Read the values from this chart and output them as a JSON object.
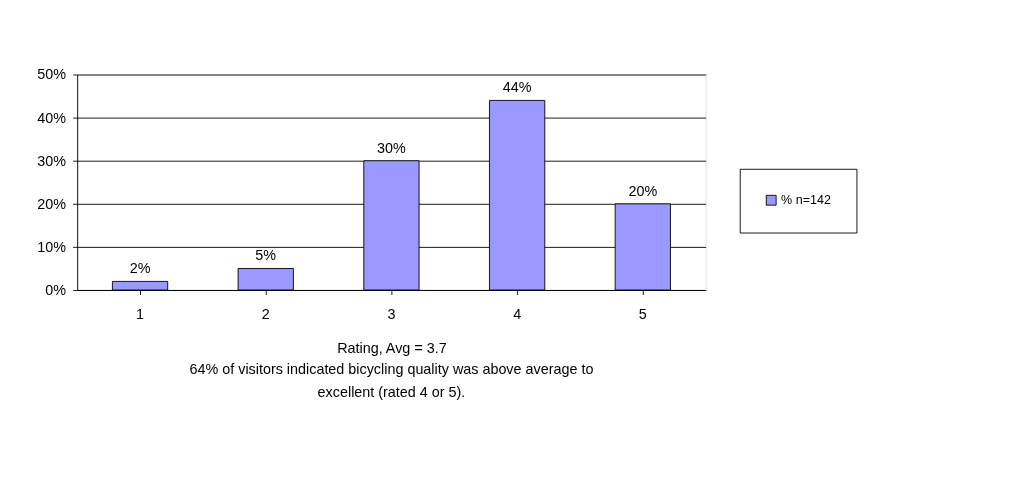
{
  "chart_data": {
    "type": "bar",
    "categories": [
      "1",
      "2",
      "3",
      "4",
      "5"
    ],
    "series": [
      {
        "name": "% n=142",
        "color": "#9999ff",
        "values": [
          2,
          5,
          30,
          44,
          20
        ],
        "value_labels": [
          "2%",
          "5%",
          "30%",
          "44%",
          "20%"
        ]
      }
    ],
    "ylim": [
      0,
      50
    ],
    "yticks": [
      {
        "value": 0,
        "label": "0%"
      },
      {
        "value": 10,
        "label": "10%"
      },
      {
        "value": 20,
        "label": "20%"
      },
      {
        "value": 30,
        "label": "30%"
      },
      {
        "value": 40,
        "label": "40%"
      },
      {
        "value": 50,
        "label": "50%"
      }
    ],
    "xlabel": "Rating, Avg = 3.7",
    "annotations": [
      "64% of visitors indicated bicycling quality was above average to excellent (rated 4 or 5)."
    ],
    "grid": "y",
    "legend": "right"
  }
}
